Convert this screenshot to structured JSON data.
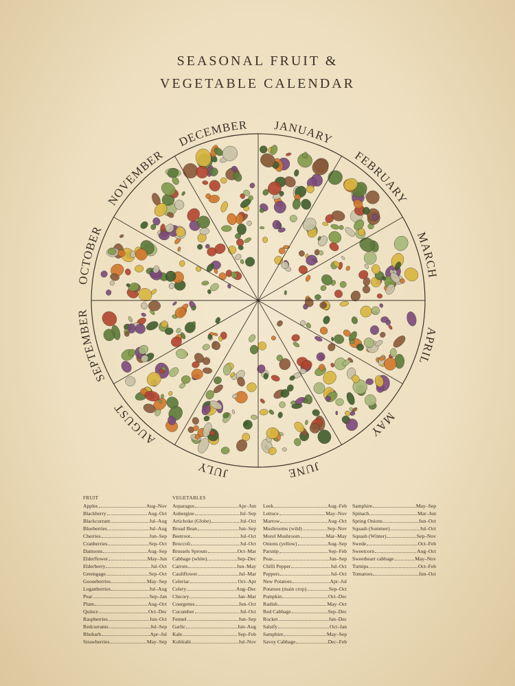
{
  "title": {
    "line1": "SEASONAL FRUIT &",
    "line2": "VEGETABLE CALENDAR"
  },
  "months": [
    "JANUARY",
    "FEBRUARY",
    "MARCH",
    "APRIL",
    "MAY",
    "JUNE",
    "JULY",
    "AUGUST",
    "SEPTEMBER",
    "OCTOBER",
    "NOVEMBER",
    "DECEMBER"
  ],
  "colors": {
    "background": "#efe2c4",
    "ink": "#3a2f25",
    "produce": [
      "#5d7a3a",
      "#7f9a4a",
      "#3f5e2c",
      "#d2782c",
      "#b2452f",
      "#7b4a7c",
      "#d9b640",
      "#a8b87a",
      "#c9c2a8",
      "#8a5a3a"
    ]
  },
  "fruit": {
    "header": "FRUIT",
    "items": [
      {
        "name": "Apples",
        "season": "Aug–Nov"
      },
      {
        "name": "Blackberry",
        "season": "Aug–Oct"
      },
      {
        "name": "Blackcurrant",
        "season": "Jul–Aug"
      },
      {
        "name": "Blueberries",
        "season": "Jul–Aug"
      },
      {
        "name": "Cherries",
        "season": "Jun–Sep"
      },
      {
        "name": "Cranberries",
        "season": "Sep–Oct"
      },
      {
        "name": "Damsons",
        "season": "Aug–Sep"
      },
      {
        "name": "Elderflower",
        "season": "May–Jun"
      },
      {
        "name": "Elderberry",
        "season": "Jul–Oct"
      },
      {
        "name": "Greengage",
        "season": "Sep–Oct"
      },
      {
        "name": "Gooseberries",
        "season": "May–Sep"
      },
      {
        "name": "Loganberries",
        "season": "Jul–Aug"
      },
      {
        "name": "Pear",
        "season": "Sep–Jan"
      },
      {
        "name": "Plum",
        "season": "Aug–Oct"
      },
      {
        "name": "Quince",
        "season": "Oct–Dec"
      },
      {
        "name": "Raspberries",
        "season": "Jun–Oct"
      },
      {
        "name": "Redcurrants",
        "season": "Jul–Sep"
      },
      {
        "name": "Rhubarb",
        "season": "Apr–Jul"
      },
      {
        "name": "Strawberries",
        "season": "May–Sep"
      }
    ]
  },
  "vegetables": {
    "header": "VEGETABLES",
    "columns": [
      [
        {
          "name": "Asparagus",
          "season": "Apr–Jun"
        },
        {
          "name": "Aubergine",
          "season": "Jul–Sep"
        },
        {
          "name": "Artichoke (Globe)",
          "season": "Jul–Oct"
        },
        {
          "name": "Broad Bean",
          "season": "Jun–Sep"
        },
        {
          "name": "Beetroot",
          "season": "Jul–Oct"
        },
        {
          "name": "Broccoli",
          "season": "Jul–Oct"
        },
        {
          "name": "Brussels Sprouts",
          "season": "Oct–Mar"
        },
        {
          "name": "Cabbage (white)",
          "season": "Sep–Dec"
        },
        {
          "name": "Carrots",
          "season": "Jun–May"
        },
        {
          "name": "Cauliflower",
          "season": "Jul–Mar"
        },
        {
          "name": "Celeriac",
          "season": "Oct–Apr"
        },
        {
          "name": "Celery",
          "season": "Aug–Dec"
        },
        {
          "name": "Chicory",
          "season": "Jan–Mar"
        },
        {
          "name": "Courgettes",
          "season": "Jun–Oct"
        },
        {
          "name": "Cucumber",
          "season": "Jul–Oct"
        },
        {
          "name": "Fennel",
          "season": "Jun–Sep"
        },
        {
          "name": "Garlic",
          "season": "Jun–Aug"
        },
        {
          "name": "Kale",
          "season": "Sep–Feb"
        },
        {
          "name": "Kohlrabi",
          "season": "Jul–Nov"
        }
      ],
      [
        {
          "name": "Leek",
          "season": "Aug–Feb"
        },
        {
          "name": "Lettuce",
          "season": "May–Nov"
        },
        {
          "name": "Marrow",
          "season": "Aug–Oct"
        },
        {
          "name": "Mushrooms (wild)",
          "season": "Sep–Nov"
        },
        {
          "name": "Morel Mushroom",
          "season": "Mar–May"
        },
        {
          "name": "Onions (yellow)",
          "season": "Aug–Sep"
        },
        {
          "name": "Parsnip",
          "season": "Sep–Feb"
        },
        {
          "name": "Peas",
          "season": "Jun–Sep"
        },
        {
          "name": "Chilli Pepper",
          "season": "Jul–Oct"
        },
        {
          "name": "Peppers",
          "season": "Jul–Oct"
        },
        {
          "name": "New Potatoes",
          "season": "Apr–Jul"
        },
        {
          "name": "Potatoes (main crop)",
          "season": "Sep–Oct"
        },
        {
          "name": "Pumpkin",
          "season": "Oct–Dec"
        },
        {
          "name": "Radish",
          "season": "May–Oct"
        },
        {
          "name": "Red Cabbage",
          "season": "Sep–Dec"
        },
        {
          "name": "Rocket",
          "season": "Jun–Dec"
        },
        {
          "name": "Salsify",
          "season": "Oct–Jan"
        },
        {
          "name": "Samphire",
          "season": "May–Sep"
        },
        {
          "name": "Savoy Cabbage",
          "season": "Dec–Feb"
        }
      ],
      [
        {
          "name": "Samphire",
          "season": "May–Sep"
        },
        {
          "name": "Spinach",
          "season": "Mar–Jun"
        },
        {
          "name": "Spring Onions",
          "season": "Jun–Oct"
        },
        {
          "name": "Squash (Summer)",
          "season": "Jul–Oct"
        },
        {
          "name": "Squash (Winter)",
          "season": "Sep–Nov"
        },
        {
          "name": "Swede",
          "season": "Oct–Feb"
        },
        {
          "name": "Sweetcorn",
          "season": "Aug–Oct"
        },
        {
          "name": "Sweetheart cabbage",
          "season": "May–Nov"
        },
        {
          "name": "Turnips",
          "season": "Oct–Feb"
        },
        {
          "name": "Tomatoes",
          "season": "Jun–Oct"
        }
      ]
    ]
  }
}
